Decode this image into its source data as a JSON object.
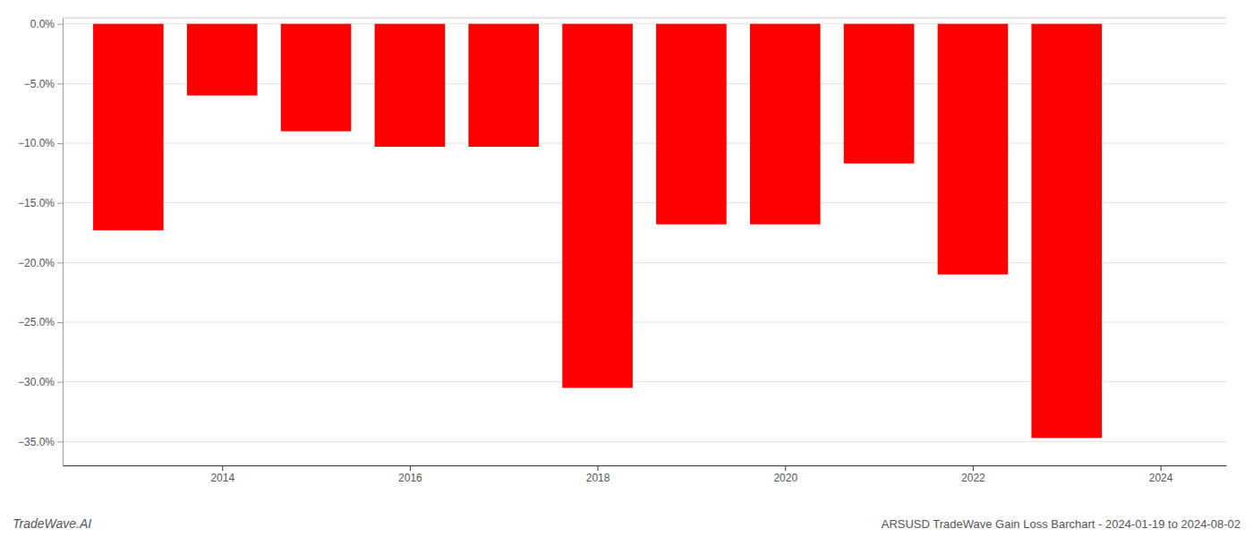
{
  "chart_data": {
    "type": "bar",
    "title": "ARSUSD TradeWave Gain Loss Barchart - 2024-01-19 to 2024-08-02",
    "annotations": [
      "TradeWave.AI"
    ],
    "x": [
      2013,
      2014,
      2015,
      2016,
      2017,
      2018,
      2019,
      2020,
      2021,
      2022,
      2023
    ],
    "values": [
      -0.173,
      -0.06,
      -0.09,
      -0.103,
      -0.103,
      -0.305,
      -0.168,
      -0.168,
      -0.117,
      -0.21,
      -0.347
    ],
    "color": "#ff0000",
    "xlim": [
      2012.3,
      2024.7
    ],
    "xticks": [
      2014,
      2016,
      2018,
      2020,
      2022,
      2024
    ],
    "ylim": [
      -0.37,
      0.005
    ],
    "yticks": [
      {
        "value": 0.0,
        "label": "0.0%"
      },
      {
        "value": -0.05,
        "label": "−5.0%"
      },
      {
        "value": -0.1,
        "label": "−10.0%"
      },
      {
        "value": -0.15,
        "label": "−15.0%"
      },
      {
        "value": -0.2,
        "label": "−20.0%"
      },
      {
        "value": -0.25,
        "label": "−25.0%"
      },
      {
        "value": -0.3,
        "label": "−30.0%"
      },
      {
        "value": -0.35,
        "label": "−35.0%"
      }
    ],
    "grid": "y"
  }
}
